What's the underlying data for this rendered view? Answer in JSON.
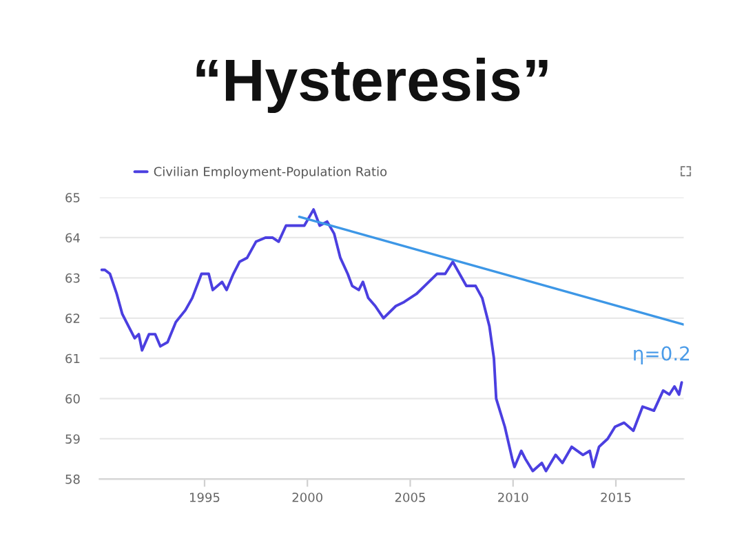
{
  "chart_data": {
    "type": "line",
    "title": "“Hysteresis”",
    "xlim": [
      1989.9,
      2018.3
    ],
    "xticks": [
      1995,
      2000,
      2005,
      2010,
      2015
    ],
    "ylim": [
      58,
      65
    ],
    "yticks": [
      58,
      59,
      60,
      61,
      62,
      63,
      64,
      65
    ],
    "grid": "y",
    "legend": "top left",
    "series": [
      {
        "name": "Civilian Employment-Population Ratio",
        "color": "#4b3fe0",
        "x": [
          1990.0,
          1990.15,
          1990.4,
          1990.73,
          1991.0,
          1991.2,
          1991.6,
          1991.8,
          1991.96,
          1992.3,
          1992.6,
          1992.85,
          1993.2,
          1993.6,
          1994.07,
          1994.4,
          1994.85,
          1995.2,
          1995.4,
          1995.85,
          1996.07,
          1996.4,
          1996.7,
          1997.07,
          1997.5,
          1997.96,
          1998.3,
          1998.6,
          1998.96,
          1999.4,
          1999.85,
          2000.3,
          2000.6,
          2000.96,
          2001.3,
          2001.6,
          2001.96,
          2002.18,
          2002.5,
          2002.7,
          2002.96,
          2003.3,
          2003.7,
          2004.3,
          2004.7,
          2005.3,
          2005.7,
          2006.3,
          2006.7,
          2007.07,
          2007.4,
          2007.73,
          2008.18,
          2008.5,
          2008.85,
          2009.07,
          2009.18,
          2009.6,
          2009.96,
          2010.07,
          2010.4,
          2010.6,
          2010.96,
          2011.4,
          2011.6,
          2012.07,
          2012.4,
          2012.85,
          2013.4,
          2013.73,
          2013.9,
          2014.18,
          2014.6,
          2014.96,
          2015.4,
          2015.85,
          2016.3,
          2016.85,
          2017.3,
          2017.6,
          2017.85,
          2018.07,
          2018.2
        ],
        "values": [
          63.2,
          63.2,
          63.1,
          62.6,
          62.1,
          61.9,
          61.5,
          61.6,
          61.2,
          61.6,
          61.6,
          61.3,
          61.4,
          61.9,
          62.2,
          62.5,
          63.1,
          63.1,
          62.7,
          62.9,
          62.7,
          63.1,
          63.4,
          63.5,
          63.9,
          64.0,
          64.0,
          63.9,
          64.3,
          64.3,
          64.3,
          64.7,
          64.3,
          64.4,
          64.1,
          63.5,
          63.1,
          62.8,
          62.7,
          62.9,
          62.5,
          62.3,
          62.0,
          62.3,
          62.4,
          62.6,
          62.8,
          63.1,
          63.1,
          63.4,
          63.1,
          62.8,
          62.8,
          62.5,
          61.8,
          61.0,
          60.0,
          59.3,
          58.5,
          58.3,
          58.7,
          58.5,
          58.2,
          58.4,
          58.2,
          58.6,
          58.4,
          58.8,
          58.6,
          58.7,
          58.3,
          58.8,
          59.0,
          59.3,
          59.4,
          59.2,
          59.8,
          59.7,
          60.2,
          60.1,
          60.3,
          60.1,
          60.4
        ]
      },
      {
        "type": "line",
        "color": "#3d97e6",
        "x": [
          1999.6,
          2018.3
        ],
        "values": [
          64.52,
          61.84
        ]
      }
    ],
    "annotations": [
      "η=0.2"
    ]
  }
}
